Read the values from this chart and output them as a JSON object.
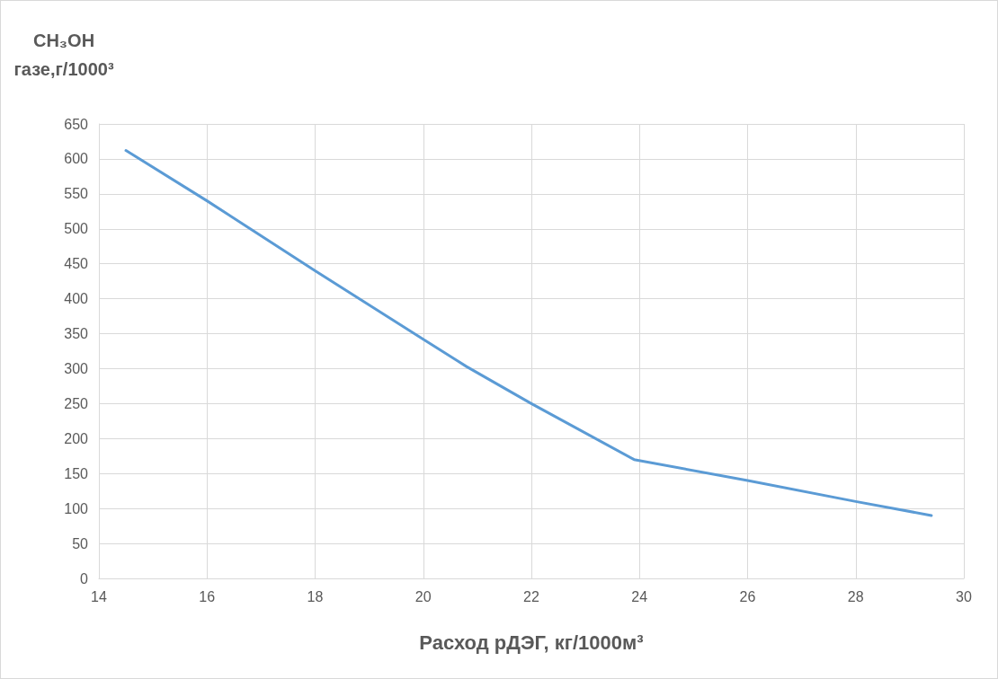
{
  "chart_data": {
    "type": "line",
    "ylabel": "CH₃OH\nгазе,г/1000³",
    "xlabel": "Расход рДЭГ, кг/1000м³",
    "x": [
      14.5,
      16,
      18,
      20,
      20.8,
      22,
      23.9,
      26,
      28,
      29.4
    ],
    "series": [
      {
        "color": "#5b9bd5",
        "values": [
          612,
          540,
          440,
          342,
          303,
          250,
          170,
          140,
          110,
          90
        ]
      }
    ],
    "xlim": [
      14,
      30
    ],
    "xticks": [
      14,
      16,
      18,
      20,
      22,
      24,
      26,
      28,
      30
    ],
    "ylim": [
      0,
      650
    ],
    "yticks": [
      0,
      50,
      100,
      150,
      200,
      250,
      300,
      350,
      400,
      450,
      500,
      550,
      600,
      650
    ],
    "grid": true,
    "marker": "none",
    "line_style": "solid"
  }
}
